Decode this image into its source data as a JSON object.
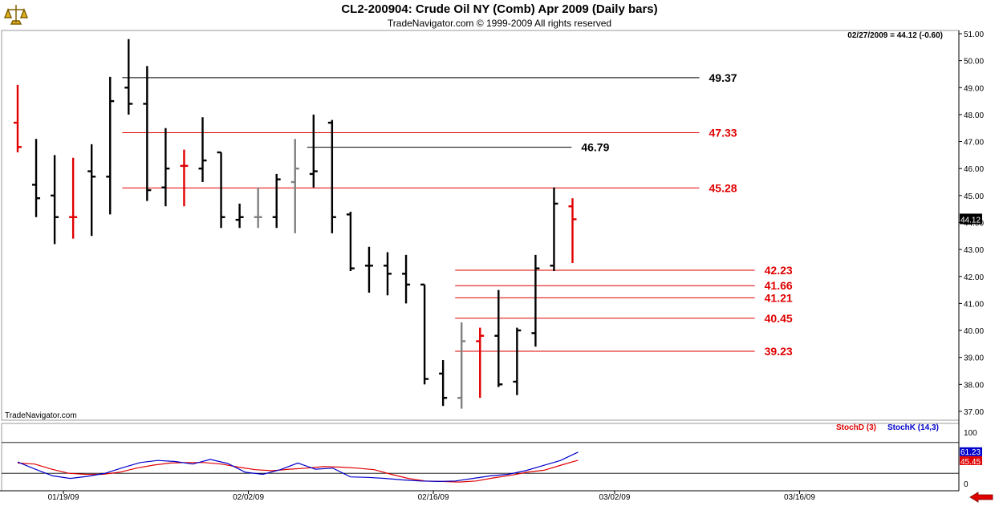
{
  "header": {
    "title": "CL2-200904:  Crude Oil NY (Comb) Apr 2009  (Daily bars)",
    "subtitle": "TradeNavigator.com © 1999-2009 All rights reserved",
    "last_quote": "02/27/2009 = 44.12 (-0.60)",
    "watermark": "TradeNavigator.com",
    "logo_icon": "scales-logo-icon"
  },
  "colors": {
    "bar_black": "#000000",
    "bar_red": "#e00000",
    "bar_gray": "#808080",
    "line_red": "#e00000",
    "line_black": "#000000",
    "stoch_d": "#e00000",
    "stoch_k": "#0000cc",
    "last_price_bg": "#000000"
  },
  "chart_data": [
    {
      "type": "ohlc",
      "price_axis": {
        "ylim": [
          36.8,
          51.2
        ],
        "ticks": [
          "37.00",
          "38.00",
          "39.00",
          "40.00",
          "41.00",
          "42.00",
          "43.00",
          "44.00",
          "45.00",
          "46.00",
          "47.00",
          "48.00",
          "49.00",
          "50.00",
          "51.00"
        ]
      },
      "last_price_label": "44.12",
      "date_ticks": [
        {
          "label": "01/19/09",
          "index": 1
        },
        {
          "label": "02/02/09",
          "index": 11
        },
        {
          "label": "02/16/09",
          "index": 21
        },
        {
          "label": "03/02/09",
          "index": 30.8
        },
        {
          "label": "03/16/09",
          "index": 40.8
        }
      ],
      "bars": [
        {
          "i": 0,
          "o": 47.7,
          "h": 49.1,
          "l": 46.6,
          "c": 46.8,
          "color": "red"
        },
        {
          "i": 1,
          "o": 45.4,
          "h": 47.1,
          "l": 44.2,
          "c": 44.9,
          "color": "black"
        },
        {
          "i": 2,
          "o": 45.0,
          "h": 46.5,
          "l": 43.2,
          "c": 44.2,
          "color": "black"
        },
        {
          "i": 3,
          "o": 44.2,
          "h": 46.4,
          "l": 43.4,
          "c": 44.2,
          "color": "red"
        },
        {
          "i": 4,
          "o": 45.9,
          "h": 46.9,
          "l": 43.5,
          "c": 45.7,
          "color": "black"
        },
        {
          "i": 5,
          "o": 45.7,
          "h": 49.4,
          "l": 44.3,
          "c": 48.5,
          "color": "black"
        },
        {
          "i": 6,
          "o": 49.0,
          "h": 50.8,
          "l": 48.0,
          "c": 48.4,
          "color": "black"
        },
        {
          "i": 7,
          "o": 48.4,
          "h": 49.8,
          "l": 44.8,
          "c": 45.2,
          "color": "black"
        },
        {
          "i": 8,
          "o": 45.3,
          "h": 47.5,
          "l": 44.6,
          "c": 46.0,
          "color": "black"
        },
        {
          "i": 9,
          "o": 46.1,
          "h": 46.7,
          "l": 44.6,
          "c": 46.1,
          "color": "red"
        },
        {
          "i": 10,
          "o": 46.0,
          "h": 47.9,
          "l": 45.5,
          "c": 46.3,
          "color": "black"
        },
        {
          "i": 11,
          "o": 46.6,
          "h": 46.6,
          "l": 43.8,
          "c": 44.2,
          "color": "black"
        },
        {
          "i": 12,
          "o": 44.1,
          "h": 44.7,
          "l": 43.8,
          "c": 44.2,
          "color": "black"
        },
        {
          "i": 13,
          "o": 44.2,
          "h": 45.3,
          "l": 43.8,
          "c": 44.2,
          "color": "gray"
        },
        {
          "i": 14,
          "o": 44.2,
          "h": 45.8,
          "l": 43.8,
          "c": 45.6,
          "color": "black"
        },
        {
          "i": 15,
          "o": 45.5,
          "h": 47.1,
          "l": 43.6,
          "c": 46.0,
          "color": "gray"
        },
        {
          "i": 16,
          "o": 45.8,
          "h": 48.0,
          "l": 45.3,
          "c": 45.9,
          "color": "black"
        },
        {
          "i": 17,
          "o": 47.7,
          "h": 47.8,
          "l": 43.6,
          "c": 44.2,
          "color": "black"
        },
        {
          "i": 18,
          "o": 44.3,
          "h": 44.4,
          "l": 42.2,
          "c": 42.3,
          "color": "black"
        },
        {
          "i": 19,
          "o": 42.4,
          "h": 43.1,
          "l": 41.4,
          "c": 42.4,
          "color": "black"
        },
        {
          "i": 20,
          "o": 42.4,
          "h": 42.9,
          "l": 41.3,
          "c": 42.1,
          "color": "black"
        },
        {
          "i": 21,
          "o": 42.1,
          "h": 42.8,
          "l": 41.0,
          "c": 41.7,
          "color": "black"
        },
        {
          "i": 22,
          "o": 41.7,
          "h": 41.7,
          "l": 38.0,
          "c": 38.2,
          "color": "black"
        },
        {
          "i": 23,
          "o": 38.4,
          "h": 38.9,
          "l": 37.2,
          "c": 37.5,
          "color": "black"
        },
        {
          "i": 24,
          "o": 37.5,
          "h": 40.3,
          "l": 37.1,
          "c": 39.6,
          "color": "gray"
        },
        {
          "i": 25,
          "o": 39.6,
          "h": 40.1,
          "l": 37.5,
          "c": 39.8,
          "color": "red"
        },
        {
          "i": 26,
          "o": 39.8,
          "h": 41.5,
          "l": 37.9,
          "c": 38.0,
          "color": "black"
        },
        {
          "i": 27,
          "o": 38.1,
          "h": 40.1,
          "l": 37.6,
          "c": 40.0,
          "color": "black"
        },
        {
          "i": 28,
          "o": 39.9,
          "h": 42.8,
          "l": 39.4,
          "c": 42.3,
          "color": "black"
        },
        {
          "i": 29,
          "o": 42.4,
          "h": 45.3,
          "l": 42.2,
          "c": 44.7,
          "color": "black"
        },
        {
          "i": 30,
          "o": 44.6,
          "h": 44.9,
          "l": 42.5,
          "c": 44.12,
          "color": "red"
        }
      ],
      "levels": [
        {
          "value": 49.37,
          "label": "49.37",
          "color": "black",
          "from": 6,
          "to": 30
        },
        {
          "value": 47.33,
          "label": "47.33",
          "color": "red",
          "from": 6,
          "to": 30
        },
        {
          "value": 46.79,
          "label": "46.79",
          "color": "black",
          "from": 16,
          "to": 27
        },
        {
          "value": 45.28,
          "label": "45.28",
          "color": "red",
          "from": 6,
          "to": 30
        },
        {
          "value": 42.23,
          "label": "42.23",
          "color": "red",
          "from": 24,
          "to": 33
        },
        {
          "value": 41.66,
          "label": "41.66",
          "color": "red",
          "from": 24,
          "to": 33
        },
        {
          "value": 41.21,
          "label": "41.21",
          "color": "red",
          "from": 24,
          "to": 33
        },
        {
          "value": 40.45,
          "label": "40.45",
          "color": "red",
          "from": 24,
          "to": 33
        },
        {
          "value": 39.23,
          "label": "39.23",
          "color": "red",
          "from": 24,
          "to": 33
        }
      ]
    },
    {
      "type": "line",
      "indicator": "stochastic",
      "ylim": [
        0,
        100
      ],
      "ticks": [
        "0",
        "100"
      ],
      "reference_lines": [
        20,
        80
      ],
      "legend": [
        {
          "name": "StochD (3)",
          "color": "red"
        },
        {
          "name": "StochK (14,3)",
          "color": "blue"
        }
      ],
      "value_labels": {
        "stoch_k": "61.23",
        "stoch_d": "45.45"
      },
      "series": [
        {
          "name": "StochD (3)",
          "color": "red",
          "values": [
            40,
            38,
            28,
            20,
            18,
            18,
            22,
            30,
            36,
            40,
            41,
            41,
            38,
            32,
            27,
            25,
            28,
            30,
            33,
            32,
            30,
            27,
            18,
            10,
            5,
            4,
            3,
            5,
            11,
            16,
            22,
            26,
            36,
            45.45
          ]
        },
        {
          "name": "StochK (14,3)",
          "color": "blue",
          "values": [
            42,
            28,
            15,
            10,
            14,
            20,
            31,
            41,
            45,
            43,
            38,
            47,
            39,
            22,
            18,
            27,
            40,
            28,
            30,
            13,
            12,
            10,
            7,
            5,
            4,
            5,
            10,
            15,
            18,
            25,
            35,
            45,
            61.23
          ]
        }
      ]
    }
  ]
}
